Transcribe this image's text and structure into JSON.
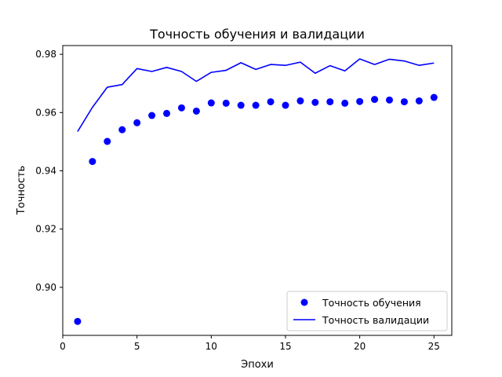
{
  "chart_data": {
    "type": "line",
    "title": "Точность обучения и валидации",
    "xlabel": "Эпохи",
    "ylabel": "Точность",
    "xlim": [
      0,
      26.2
    ],
    "ylim": [
      0.8835,
      0.983
    ],
    "x_ticks": [
      {
        "value": 0,
        "label": "0"
      },
      {
        "value": 5,
        "label": "5"
      },
      {
        "value": 10,
        "label": "10"
      },
      {
        "value": 15,
        "label": "15"
      },
      {
        "value": 20,
        "label": "20"
      },
      {
        "value": 25,
        "label": "25"
      }
    ],
    "y_ticks": [
      {
        "value": 0.9,
        "label": "0.90"
      },
      {
        "value": 0.92,
        "label": "0.92"
      },
      {
        "value": 0.94,
        "label": "0.94"
      },
      {
        "value": 0.96,
        "label": "0.96"
      },
      {
        "value": 0.98,
        "label": "0.98"
      }
    ],
    "grid": false,
    "legend_position": "lower-right",
    "series": [
      {
        "name": "Точность обучения",
        "style": "markers",
        "color": "#0000ff",
        "x": [
          1,
          2,
          3,
          4,
          5,
          6,
          7,
          8,
          9,
          10,
          11,
          12,
          13,
          14,
          15,
          16,
          17,
          18,
          19,
          20,
          21,
          22,
          23,
          24,
          25
        ],
        "values": [
          0.8883,
          0.9432,
          0.9501,
          0.9541,
          0.9565,
          0.959,
          0.9597,
          0.9616,
          0.9605,
          0.9633,
          0.9632,
          0.9625,
          0.9625,
          0.9637,
          0.9625,
          0.964,
          0.9635,
          0.9637,
          0.9632,
          0.9638,
          0.9645,
          0.9643,
          0.9637,
          0.964,
          0.9652
        ]
      },
      {
        "name": "Точность валидации",
        "style": "line",
        "color": "#0000ff",
        "x": [
          1,
          2,
          3,
          4,
          5,
          6,
          7,
          8,
          9,
          10,
          11,
          12,
          13,
          14,
          15,
          16,
          17,
          18,
          19,
          20,
          21,
          22,
          23,
          24,
          25
        ],
        "values": [
          0.9535,
          0.9618,
          0.9687,
          0.9696,
          0.9751,
          0.9741,
          0.9755,
          0.9741,
          0.9707,
          0.9738,
          0.9745,
          0.9771,
          0.9748,
          0.9765,
          0.9762,
          0.9773,
          0.9735,
          0.9761,
          0.9743,
          0.9784,
          0.9765,
          0.9783,
          0.9777,
          0.9762,
          0.977
        ]
      }
    ]
  }
}
